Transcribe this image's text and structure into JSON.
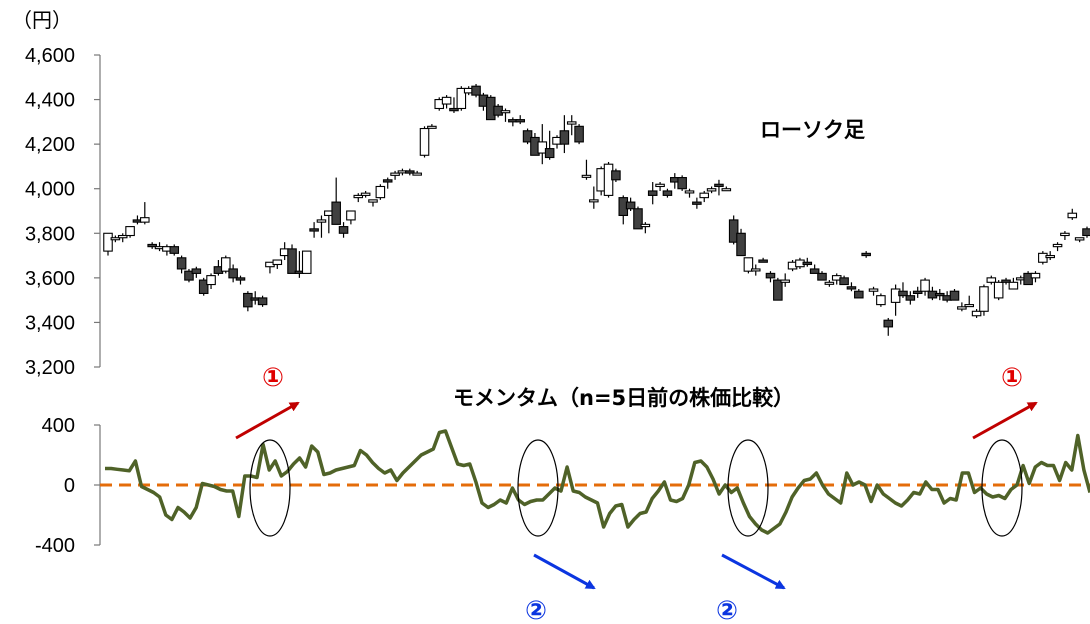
{
  "chart_data": [
    {
      "type": "candlestick",
      "unit_label": "（円）",
      "series_label": "ローソク足",
      "y_ticks": [
        "4,600",
        "4,400",
        "4,200",
        "4,000",
        "3,800",
        "3,600",
        "3,400",
        "3,200"
      ],
      "ylim": [
        3200,
        4600
      ],
      "candles": [
        [
          3720,
          3800,
          3700,
          3800
        ],
        [
          3780,
          3790,
          3760,
          3780
        ],
        [
          3780,
          3800,
          3760,
          3790
        ],
        [
          3790,
          3830,
          3780,
          3830
        ],
        [
          3860,
          3880,
          3840,
          3850
        ],
        [
          3850,
          3940,
          3840,
          3870
        ],
        [
          3750,
          3760,
          3730,
          3740
        ],
        [
          3740,
          3760,
          3720,
          3740
        ],
        [
          3720,
          3750,
          3700,
          3740
        ],
        [
          3740,
          3750,
          3700,
          3710
        ],
        [
          3690,
          3700,
          3620,
          3640
        ],
        [
          3630,
          3640,
          3580,
          3590
        ],
        [
          3640,
          3650,
          3600,
          3620
        ],
        [
          3590,
          3600,
          3520,
          3530
        ],
        [
          3570,
          3620,
          3550,
          3610
        ],
        [
          3650,
          3680,
          3610,
          3620
        ],
        [
          3630,
          3700,
          3620,
          3690
        ],
        [
          3640,
          3660,
          3580,
          3600
        ],
        [
          3600,
          3610,
          3570,
          3590
        ],
        [
          3530,
          3540,
          3450,
          3470
        ],
        [
          3510,
          3540,
          3480,
          3500
        ],
        [
          3510,
          3520,
          3470,
          3480
        ],
        [
          3650,
          3670,
          3620,
          3670
        ],
        [
          3660,
          3680,
          3640,
          3680
        ],
        [
          3700,
          3760,
          3680,
          3730
        ],
        [
          3730,
          3750,
          3620,
          3620
        ],
        [
          3630,
          3720,
          3600,
          3620
        ],
        [
          3620,
          3720,
          3620,
          3720
        ],
        [
          3820,
          3850,
          3780,
          3810
        ],
        [
          3850,
          3880,
          3780,
          3860
        ],
        [
          3880,
          3900,
          3800,
          3900
        ],
        [
          3940,
          4050,
          3850,
          3840
        ],
        [
          3830,
          3850,
          3780,
          3800
        ],
        [
          3860,
          3900,
          3840,
          3900
        ],
        [
          3960,
          3980,
          3940,
          3970
        ],
        [
          3970,
          3990,
          3960,
          3980
        ],
        [
          3940,
          3950,
          3920,
          3950
        ],
        [
          3960,
          4020,
          3950,
          4010
        ],
        [
          4040,
          4050,
          4000,
          4030
        ],
        [
          4060,
          4080,
          4040,
          4070
        ],
        [
          4080,
          4090,
          4060,
          4080
        ],
        [
          4080,
          4090,
          4060,
          4070
        ],
        [
          4070,
          4080,
          4060,
          4070
        ],
        [
          4150,
          4280,
          4140,
          4270
        ],
        [
          4280,
          4290,
          4270,
          4280
        ],
        [
          4360,
          4410,
          4350,
          4400
        ],
        [
          4380,
          4420,
          4360,
          4410
        ],
        [
          4360,
          4410,
          4340,
          4350
        ],
        [
          4360,
          4460,
          4350,
          4450
        ],
        [
          4430,
          4460,
          4420,
          4450
        ],
        [
          4460,
          4470,
          4410,
          4420
        ],
        [
          4420,
          4430,
          4350,
          4370
        ],
        [
          4410,
          4420,
          4310,
          4310
        ],
        [
          4370,
          4380,
          4320,
          4330
        ],
        [
          4350,
          4360,
          4300,
          4350
        ],
        [
          4310,
          4320,
          4280,
          4300
        ],
        [
          4310,
          4330,
          4290,
          4300
        ],
        [
          4260,
          4270,
          4200,
          4210
        ],
        [
          4230,
          4250,
          4150,
          4150
        ],
        [
          4160,
          4290,
          4110,
          4210
        ],
        [
          4180,
          4260,
          4130,
          4140
        ],
        [
          4200,
          4240,
          4180,
          4230
        ],
        [
          4260,
          4330,
          4160,
          4200
        ],
        [
          4290,
          4330,
          4240,
          4300
        ],
        [
          4280,
          4290,
          4200,
          4210
        ],
        [
          4060,
          4130,
          4040,
          4060
        ],
        [
          3950,
          4010,
          3910,
          3950
        ],
        [
          3990,
          4100,
          3970,
          4090
        ],
        [
          3970,
          4120,
          3960,
          4110
        ],
        [
          4080,
          4090,
          4030,
          4040
        ],
        [
          3960,
          3970,
          3840,
          3880
        ],
        [
          3940,
          3960,
          3900,
          3910
        ],
        [
          3910,
          3920,
          3820,
          3820
        ],
        [
          3830,
          3850,
          3800,
          3840
        ],
        [
          3990,
          4030,
          3930,
          3970
        ],
        [
          4010,
          4030,
          3990,
          4020
        ],
        [
          3990,
          4000,
          3960,
          3970
        ],
        [
          4050,
          4070,
          4000,
          4030
        ],
        [
          4050,
          4060,
          3990,
          4000
        ],
        [
          3990,
          4000,
          3960,
          3990
        ],
        [
          3940,
          3960,
          3910,
          3930
        ],
        [
          3960,
          3990,
          3940,
          3980
        ],
        [
          3990,
          4010,
          3980,
          4000
        ],
        [
          4020,
          4040,
          3970,
          4010
        ],
        [
          4000,
          4010,
          3990,
          4000
        ],
        [
          3860,
          3880,
          3750,
          3760
        ],
        [
          3800,
          3820,
          3700,
          3700
        ],
        [
          3630,
          3690,
          3620,
          3690
        ],
        [
          3640,
          3660,
          3610,
          3640
        ],
        [
          3680,
          3690,
          3670,
          3670
        ],
        [
          3620,
          3630,
          3580,
          3600
        ],
        [
          3590,
          3600,
          3500,
          3500
        ],
        [
          3580,
          3620,
          3560,
          3590
        ],
        [
          3640,
          3680,
          3630,
          3670
        ],
        [
          3650,
          3690,
          3640,
          3680
        ],
        [
          3670,
          3690,
          3650,
          3660
        ],
        [
          3640,
          3660,
          3620,
          3620
        ],
        [
          3620,
          3630,
          3590,
          3590
        ],
        [
          3580,
          3590,
          3560,
          3580
        ],
        [
          3590,
          3620,
          3570,
          3610
        ],
        [
          3600,
          3610,
          3570,
          3570
        ],
        [
          3560,
          3580,
          3540,
          3550
        ],
        [
          3540,
          3550,
          3510,
          3510
        ],
        [
          3710,
          3720,
          3690,
          3700
        ],
        [
          3540,
          3560,
          3520,
          3550
        ],
        [
          3480,
          3530,
          3470,
          3520
        ],
        [
          3410,
          3420,
          3340,
          3380
        ],
        [
          3490,
          3570,
          3430,
          3550
        ],
        [
          3540,
          3580,
          3510,
          3520
        ],
        [
          3520,
          3540,
          3480,
          3500
        ],
        [
          3540,
          3560,
          3510,
          3530
        ],
        [
          3540,
          3600,
          3520,
          3590
        ],
        [
          3540,
          3560,
          3500,
          3510
        ],
        [
          3530,
          3550,
          3500,
          3520
        ],
        [
          3520,
          3540,
          3490,
          3500
        ],
        [
          3540,
          3550,
          3500,
          3500
        ],
        [
          3460,
          3490,
          3450,
          3470
        ],
        [
          3480,
          3520,
          3470,
          3480
        ],
        [
          3430,
          3460,
          3420,
          3450
        ],
        [
          3450,
          3570,
          3430,
          3560
        ],
        [
          3580,
          3610,
          3570,
          3600
        ],
        [
          3510,
          3590,
          3500,
          3580
        ],
        [
          3590,
          3600,
          3570,
          3580
        ],
        [
          3550,
          3600,
          3550,
          3580
        ],
        [
          3600,
          3610,
          3570,
          3600
        ],
        [
          3620,
          3630,
          3570,
          3570
        ],
        [
          3600,
          3630,
          3580,
          3620
        ],
        [
          3670,
          3720,
          3660,
          3710
        ],
        [
          3700,
          3720,
          3680,
          3700
        ],
        [
          3740,
          3760,
          3720,
          3750
        ],
        [
          3790,
          3810,
          3770,
          3800
        ],
        [
          3870,
          3910,
          3860,
          3890
        ],
        [
          3770,
          3780,
          3760,
          3780
        ],
        [
          3820,
          3830,
          3780,
          3790
        ]
      ]
    },
    {
      "type": "line",
      "series_label": "モメンタム（n=5日前の株価比較）",
      "y_ticks": [
        "400",
        "0",
        "-400"
      ],
      "ylim": [
        -400,
        400
      ],
      "values": [
        110,
        110,
        105,
        100,
        95,
        160,
        -10,
        -30,
        -50,
        -80,
        -200,
        -230,
        -150,
        -180,
        -220,
        -150,
        10,
        0,
        -10,
        -30,
        -40,
        -40,
        -210,
        60,
        60,
        50,
        270,
        100,
        160,
        60,
        90,
        140,
        180,
        120,
        260,
        220,
        70,
        80,
        100,
        110,
        120,
        130,
        230,
        200,
        150,
        110,
        80,
        100,
        30,
        80,
        120,
        160,
        200,
        220,
        240,
        350,
        360,
        250,
        140,
        130,
        140,
        20,
        -120,
        -150,
        -130,
        -100,
        -120,
        -20,
        -100,
        -130,
        -110,
        -100,
        -100,
        -60,
        -20,
        -40,
        120,
        -40,
        -50,
        -80,
        -100,
        -120,
        -280,
        -190,
        -140,
        -130,
        -280,
        -230,
        -190,
        -180,
        -90,
        -40,
        20,
        -100,
        -110,
        -90,
        0,
        150,
        160,
        120,
        40,
        -60,
        0,
        -50,
        -20,
        -120,
        -210,
        -260,
        -300,
        -320,
        -290,
        -260,
        -180,
        -80,
        -20,
        30,
        40,
        80,
        0,
        -60,
        -90,
        -120,
        80,
        0,
        20,
        0,
        -110,
        0,
        -60,
        -90,
        -120,
        -140,
        -100,
        -50,
        -60,
        20,
        -30,
        -30,
        -120,
        -90,
        -100,
        80,
        80,
        -50,
        -20,
        -60,
        -80,
        -70,
        -90,
        -30,
        0,
        130,
        10,
        120,
        150,
        130,
        130,
        30,
        150,
        100,
        330,
        100,
        -50
      ]
    }
  ],
  "annotations": {
    "up_mark": "①",
    "down_mark": "②"
  },
  "colors": {
    "momentum_line": "#4f6228",
    "zero_line": "#e46c0a",
    "up_arrow": "#c00000",
    "down_arrow": "#0b35e0",
    "bear_body": "#404040"
  }
}
